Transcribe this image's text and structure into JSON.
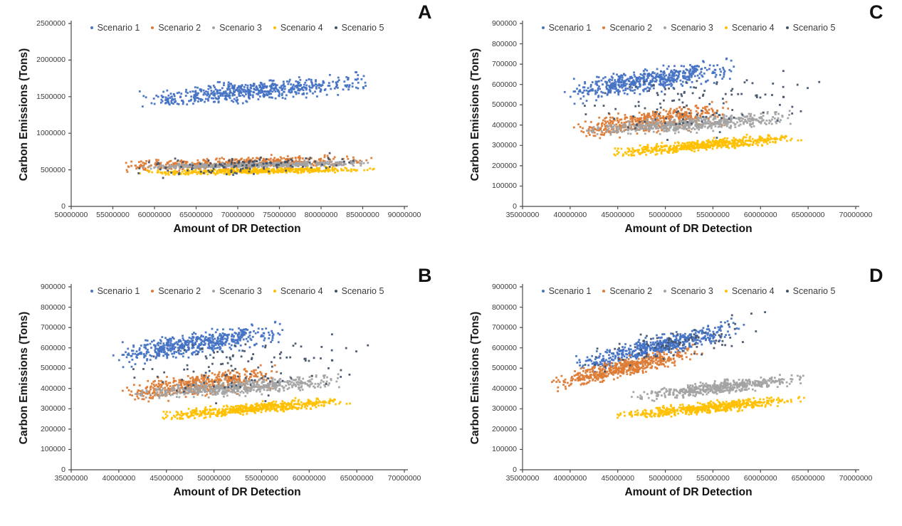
{
  "figure": {
    "background": "#ffffff",
    "axis_color": "#4a4a4a",
    "tick_text_color": "#3c3c3c",
    "title_text_color": "#121212",
    "legend_labels": [
      "Scenario 1",
      "Scenario 2",
      "Scenario 3",
      "Scenario 4",
      "Scenario 5"
    ],
    "series_colors": {
      "scenario1": "#4472C4",
      "scenario2": "#DD7B35",
      "scenario3": "#A3A3A3",
      "scenario4": "#FFC000",
      "scenario5": "#44546A"
    }
  },
  "chart_data": {
    "type": "scatter",
    "grid": false,
    "legend_position": "top-center-inside",
    "panels": [
      {
        "letter": "A",
        "xlabel": "Amount of DR Detection",
        "ylabel": "Carbon Emissions (Tons)",
        "xlim": [
          50000000,
          90000000
        ],
        "ylim": [
          0,
          2500000
        ],
        "x_ticks": [
          50000000,
          55000000,
          60000000,
          65000000,
          70000000,
          75000000,
          80000000,
          85000000,
          90000000
        ],
        "y_ticks": [
          0,
          500000,
          1000000,
          1500000,
          2000000,
          2500000
        ],
        "series": [
          {
            "name": "Scenario 1",
            "color": "#4472C4",
            "n": 560,
            "x_range": [
              57500000,
              86500000
            ],
            "y_trend": [
              1430000,
              1730000
            ],
            "y_spread": 125000,
            "seed": 11
          },
          {
            "name": "Scenario 2",
            "color": "#DD7B35",
            "n": 470,
            "x_range": [
              55000000,
              86500000
            ],
            "y_trend": [
              545000,
              645000
            ],
            "y_spread": 72000,
            "seed": 12
          },
          {
            "name": "Scenario 3",
            "color": "#A3A3A3",
            "n": 470,
            "x_range": [
              58000000,
              86500000
            ],
            "y_trend": [
              540000,
              595000
            ],
            "y_spread": 30000,
            "seed": 13
          },
          {
            "name": "Scenario 4",
            "color": "#FFC000",
            "n": 520,
            "x_range": [
              58000000,
              86500000
            ],
            "y_trend": [
              455000,
              512000
            ],
            "y_spread": 32000,
            "seed": 14
          },
          {
            "name": "Scenario 5",
            "color": "#44546A",
            "n": 130,
            "x_range": [
              57000000,
              86500000
            ],
            "y_trend": [
              490000,
              635000
            ],
            "y_spread": 108000,
            "seed": 15
          }
        ]
      },
      {
        "letter": "B",
        "xlabel": "Amount of DR Detection",
        "ylabel": "Carbon Emissions (Tons)",
        "xlim": [
          35000000,
          70000000
        ],
        "ylim": [
          0,
          900000
        ],
        "x_ticks": [
          35000000,
          40000000,
          45000000,
          50000000,
          55000000,
          60000000,
          65000000,
          70000000
        ],
        "y_ticks": [
          0,
          100000,
          200000,
          300000,
          400000,
          500000,
          600000,
          700000,
          800000,
          900000
        ],
        "series": [
          {
            "name": "Scenario 1",
            "color": "#4472C4",
            "n": 520,
            "x_range": [
              39000000,
              58000000
            ],
            "y_trend": [
              552000,
              688000
            ],
            "y_spread": 52000,
            "seed": 21
          },
          {
            "name": "Scenario 2",
            "color": "#DD7B35",
            "n": 470,
            "x_range": [
              40000000,
              57000000
            ],
            "y_trend": [
              372000,
              468000
            ],
            "y_spread": 48000,
            "seed": 22
          },
          {
            "name": "Scenario 3",
            "color": "#A3A3A3",
            "n": 520,
            "x_range": [
              41500000,
              64000000
            ],
            "y_trend": [
              372000,
              443000
            ],
            "y_spread": 33000,
            "seed": 23
          },
          {
            "name": "Scenario 4",
            "color": "#FFC000",
            "n": 520,
            "x_range": [
              44000000,
              64500000
            ],
            "y_trend": [
              262000,
              342000
            ],
            "y_spread": 24000,
            "seed": 24
          },
          {
            "name": "Scenario 5",
            "color": "#44546A",
            "n": 120,
            "x_range": [
              40000000,
              67500000
            ],
            "y_trend": [
              450000,
              555000
            ],
            "y_spread": 135000,
            "seed": 25
          }
        ]
      },
      {
        "letter": "C",
        "xlabel": "Amount of DR Detection",
        "ylabel": "Carbon Emissions (Tons)",
        "xlim": [
          35000000,
          70000000
        ],
        "ylim": [
          0,
          900000
        ],
        "x_ticks": [
          35000000,
          40000000,
          45000000,
          50000000,
          55000000,
          60000000,
          65000000,
          70000000
        ],
        "y_ticks": [
          0,
          100000,
          200000,
          300000,
          400000,
          500000,
          600000,
          700000,
          800000,
          900000
        ],
        "series": [
          {
            "name": "Scenario 1",
            "color": "#4472C4",
            "n": 520,
            "x_range": [
              39000000,
              58000000
            ],
            "y_trend": [
              552000,
              688000
            ],
            "y_spread": 52000,
            "seed": 21
          },
          {
            "name": "Scenario 2",
            "color": "#DD7B35",
            "n": 470,
            "x_range": [
              40000000,
              57000000
            ],
            "y_trend": [
              372000,
              468000
            ],
            "y_spread": 48000,
            "seed": 22
          },
          {
            "name": "Scenario 3",
            "color": "#A3A3A3",
            "n": 520,
            "x_range": [
              41500000,
              64000000
            ],
            "y_trend": [
              372000,
              443000
            ],
            "y_spread": 33000,
            "seed": 23
          },
          {
            "name": "Scenario 4",
            "color": "#FFC000",
            "n": 520,
            "x_range": [
              44000000,
              64500000
            ],
            "y_trend": [
              262000,
              342000
            ],
            "y_spread": 24000,
            "seed": 24
          },
          {
            "name": "Scenario 5",
            "color": "#44546A",
            "n": 120,
            "x_range": [
              40000000,
              67500000
            ],
            "y_trend": [
              450000,
              555000
            ],
            "y_spread": 135000,
            "seed": 25
          }
        ]
      },
      {
        "letter": "D",
        "xlabel": "Amount of DR Detection",
        "ylabel": "Carbon Emissions (Tons)",
        "xlim": [
          35000000,
          70000000
        ],
        "ylim": [
          0,
          900000
        ],
        "x_ticks": [
          35000000,
          40000000,
          45000000,
          50000000,
          55000000,
          60000000,
          65000000,
          70000000
        ],
        "y_ticks": [
          0,
          100000,
          200000,
          300000,
          400000,
          500000,
          600000,
          700000,
          800000,
          900000
        ],
        "series": [
          {
            "name": "Scenario 1",
            "color": "#4472C4",
            "n": 560,
            "x_range": [
              40000000,
              58500000
            ],
            "y_trend": [
              505000,
              708000
            ],
            "y_spread": 46000,
            "seed": 31
          },
          {
            "name": "Scenario 2",
            "color": "#DD7B35",
            "n": 520,
            "x_range": [
              37500000,
              54000000
            ],
            "y_trend": [
              418000,
              590000
            ],
            "y_spread": 38000,
            "seed": 32
          },
          {
            "name": "Scenario 3",
            "color": "#A3A3A3",
            "n": 470,
            "x_range": [
              46000000,
              65000000
            ],
            "y_trend": [
              356000,
              452000
            ],
            "y_spread": 28000,
            "seed": 33
          },
          {
            "name": "Scenario 4",
            "color": "#FFC000",
            "n": 520,
            "x_range": [
              44500000,
              65000000
            ],
            "y_trend": [
              262000,
              352000
            ],
            "y_spread": 24000,
            "seed": 34
          },
          {
            "name": "Scenario 5",
            "color": "#44546A",
            "n": 90,
            "x_range": [
              39500000,
              61500000
            ],
            "y_trend": [
              505000,
              735000
            ],
            "y_spread": 68000,
            "seed": 35
          }
        ]
      }
    ]
  }
}
